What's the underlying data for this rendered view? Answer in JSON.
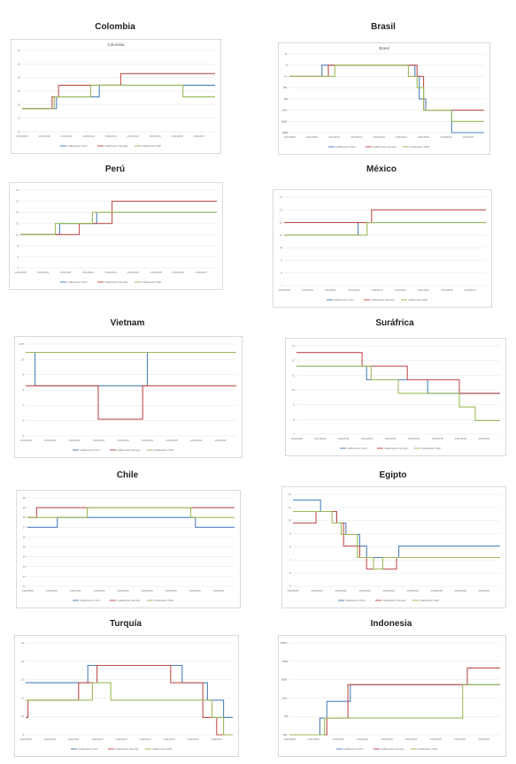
{
  "colors": {
    "fitch": "#4f81bd",
    "moodys": "#c0504d",
    "sp": "#9bbb59",
    "grid": "#e4e4e4"
  },
  "legend": [
    "Calificación Fitch",
    "Calificación Moodys",
    "Calificación S&P"
  ],
  "chart_data": [
    {
      "type": "line",
      "title": "Colombia",
      "subtitle": "Colombia",
      "step": true,
      "x_ticks": [
        "1/01/2009",
        "1/01/2010",
        "1/01/2011",
        "1/01/2012",
        "1/01/2013",
        "1/01/2014",
        "1/01/2015",
        "1/01/2016",
        "1/01/2017"
      ],
      "y_ticks": [
        "11",
        "12",
        "13",
        "14",
        "15",
        "16",
        "17"
      ],
      "xlim": [
        0,
        9
      ],
      "ylim": [
        10,
        17
      ],
      "series": [
        {
          "name": "Calificación Fitch",
          "color": "#4f81bd",
          "x": [
            0,
            1.6,
            1.6,
            2.6,
            3.6,
            3.6,
            4.6,
            8.2,
            8.2,
            9
          ],
          "y": [
            12,
            12,
            13,
            13,
            13,
            14,
            14,
            14,
            14,
            14
          ]
        },
        {
          "name": "Calificación Moodys",
          "color": "#c0504d",
          "x": [
            0,
            1.4,
            1.4,
            1.7,
            1.7,
            4.6,
            4.6,
            9
          ],
          "y": [
            12,
            12,
            13,
            13,
            14,
            14,
            15,
            15
          ]
        },
        {
          "name": "Calificación S&P",
          "color": "#9bbb59",
          "x": [
            0,
            1.5,
            1.5,
            3.2,
            3.2,
            7.5,
            7.5,
            9
          ],
          "y": [
            12,
            12,
            13,
            13,
            14,
            14,
            13,
            13
          ]
        }
      ]
    },
    {
      "type": "line",
      "title": "Brasil",
      "subtitle": "Brasil",
      "step": true,
      "x_ticks": [
        "1/01/2009",
        "1/01/2010",
        "1/01/2011",
        "1/01/2012",
        "1/01/2013",
        "1/01/2014",
        "1/01/2015",
        "1/01/2016",
        "1/01/2017"
      ],
      "y_ticks": [
        "BBB",
        "BBB-",
        "BB+",
        "BB",
        "BB-",
        "B+",
        "B",
        "B-"
      ],
      "xlim": [
        0,
        9
      ],
      "ylim": [
        0,
        7
      ],
      "series": [
        {
          "name": "Calificación Fitch",
          "color": "#4f81bd",
          "x": [
            0,
            1.5,
            1.5,
            5.8,
            5.8,
            6.0,
            6.0,
            6.3,
            6.3,
            7.5,
            7.5,
            9
          ],
          "y": [
            5,
            5,
            6,
            6,
            5,
            5,
            3,
            3,
            2,
            2,
            0,
            0
          ]
        },
        {
          "name": "Calificación Moodys",
          "color": "#c0504d",
          "x": [
            0,
            1.8,
            1.8,
            5.9,
            5.9,
            6.2,
            6.2,
            9
          ],
          "y": [
            5,
            5,
            6,
            6,
            5,
            5,
            2,
            2
          ]
        },
        {
          "name": "Calificación S&P",
          "color": "#9bbb59",
          "x": [
            0,
            2.1,
            2.1,
            5.5,
            5.5,
            5.9,
            5.9,
            6.2,
            6.2,
            7.5,
            7.5,
            9
          ],
          "y": [
            5,
            5,
            6,
            6,
            5,
            5,
            4,
            4,
            2,
            2,
            1,
            1
          ]
        }
      ]
    },
    {
      "type": "line",
      "title": "Perú",
      "step": true,
      "x_ticks": [
        "1/01/2009",
        "1/01/2010",
        "1/01/2011",
        "1/01/2012",
        "1/01/2013",
        "1/01/2014",
        "1/01/2015",
        "1/01/2016",
        "1/01/2017"
      ],
      "y_ticks": [
        "7",
        "8",
        "9",
        "10",
        "11",
        "12",
        "13",
        "14"
      ],
      "xlim": [
        0,
        9
      ],
      "ylim": [
        7,
        14
      ],
      "series": [
        {
          "name": "Calificación Fitch",
          "color": "#4f81bd",
          "x": [
            0,
            1.8,
            1.8,
            3.5,
            3.5,
            9
          ],
          "y": [
            10,
            10,
            11,
            11,
            12,
            12
          ]
        },
        {
          "name": "Calificación Moodys",
          "color": "#c0504d",
          "x": [
            0,
            2.7,
            2.7,
            4.2,
            4.2,
            9
          ],
          "y": [
            10,
            10,
            11,
            11,
            13,
            13
          ]
        },
        {
          "name": "Calificación S&P",
          "color": "#9bbb59",
          "x": [
            0,
            1.6,
            1.6,
            3.3,
            3.3,
            9
          ],
          "y": [
            10,
            10,
            11,
            11,
            12,
            12
          ]
        }
      ]
    },
    {
      "type": "line",
      "title": "México",
      "step": true,
      "x_ticks": [
        "1/01/2009",
        "1/01/2010",
        "1/01/2011",
        "1/01/2012",
        "1/01/2013",
        "1/01/2014",
        "1/01/2015",
        "1/01/2016",
        "1/01/2017"
      ],
      "y_ticks": [
        "7",
        "8",
        "9",
        "10",
        "11",
        "12",
        "13",
        "14"
      ],
      "xlim": [
        0,
        9
      ],
      "ylim": [
        7,
        14
      ],
      "series": [
        {
          "name": "Calificación Fitch",
          "color": "#4f81bd",
          "x": [
            0,
            3.3,
            3.3,
            9
          ],
          "y": [
            11,
            11,
            12,
            12
          ]
        },
        {
          "name": "Calificación Moodys",
          "color": "#c0504d",
          "x": [
            0,
            3.9,
            3.9,
            9
          ],
          "y": [
            12,
            12,
            13,
            13
          ]
        },
        {
          "name": "Calificación S&P",
          "color": "#9bbb59",
          "x": [
            0,
            3.7,
            3.7,
            9
          ],
          "y": [
            11,
            11,
            12,
            12
          ]
        }
      ]
    },
    {
      "type": "line",
      "title": "Vietnam",
      "step": true,
      "x_ticks": [
        "1/01/2009",
        "1/01/2010",
        "1/01/2011",
        "1/01/2012",
        "1/01/2013",
        "1/01/2014",
        "1/01/2015",
        "1/01/2016",
        "1/01/2017"
      ],
      "y_ticks": [
        "5",
        "6",
        "7",
        "8",
        "9",
        "10",
        "10.5"
      ],
      "xlim": [
        0,
        9
      ],
      "ylim": [
        5,
        10.5
      ],
      "series": [
        {
          "name": "Calificación Fitch",
          "color": "#4f81bd",
          "x": [
            0,
            0.4,
            0.4,
            5.2,
            5.2,
            9
          ],
          "y": [
            10,
            10,
            8,
            8,
            10,
            10
          ]
        },
        {
          "name": "Calificación Moodys",
          "color": "#c0504d",
          "x": [
            0,
            3.1,
            3.1,
            5.0,
            5.0,
            9
          ],
          "y": [
            8,
            8,
            6,
            6,
            8,
            8
          ]
        },
        {
          "name": "Calificación S&P",
          "color": "#9bbb59",
          "x": [
            0,
            9
          ],
          "y": [
            10,
            10
          ]
        }
      ]
    },
    {
      "type": "line",
      "title": "Suráfrica",
      "step": true,
      "x_ticks": [
        "1/01/2009",
        "1/01/2010",
        "1/01/2011",
        "1/01/2012",
        "1/01/2013",
        "1/01/2014",
        "1/01/2015",
        "1/01/2016",
        "1/01/2017"
      ],
      "y_ticks": [
        "7",
        "8",
        "9",
        "10",
        "11",
        "12",
        "13"
      ],
      "xlim": [
        0,
        9
      ],
      "ylim": [
        7,
        13.5
      ],
      "series": [
        {
          "name": "Calificación Fitch",
          "color": "#4f81bd",
          "x": [
            0,
            3.1,
            3.1,
            5.8,
            5.8,
            9
          ],
          "y": [
            12,
            12,
            11,
            11,
            10,
            10
          ]
        },
        {
          "name": "Calificación Moodys",
          "color": "#c0504d",
          "x": [
            0,
            2.9,
            2.9,
            4.9,
            4.9,
            7.2,
            7.2,
            9
          ],
          "y": [
            13,
            13,
            12,
            12,
            11,
            11,
            10,
            10
          ]
        },
        {
          "name": "Calificación S&P",
          "color": "#9bbb59",
          "x": [
            0,
            3.3,
            3.3,
            4.5,
            4.5,
            7.2,
            7.2,
            7.9,
            7.9,
            9
          ],
          "y": [
            12,
            12,
            11,
            11,
            10,
            10,
            9,
            9,
            8,
            8
          ]
        }
      ]
    },
    {
      "type": "line",
      "title": "Chile",
      "step": true,
      "x_ticks": [
        "1/01/2009",
        "1/01/2010",
        "1/01/2011",
        "1/01/2012",
        "1/01/2013",
        "1/01/2014",
        "1/01/2015",
        "1/01/2016",
        "1/01/2017"
      ],
      "y_ticks": [
        "11",
        "12",
        "13",
        "14",
        "15",
        "16",
        "17",
        "18",
        "19",
        "20"
      ],
      "xlim": [
        0,
        9
      ],
      "ylim": [
        11,
        20
      ],
      "series": [
        {
          "name": "Calificación Fitch",
          "color": "#4f81bd",
          "x": [
            0,
            1.3,
            1.3,
            7.3,
            7.3,
            9
          ],
          "y": [
            17,
            17,
            18,
            18,
            17,
            17
          ]
        },
        {
          "name": "Calificación Moodys",
          "color": "#c0504d",
          "x": [
            0,
            0.4,
            0.4,
            9
          ],
          "y": [
            18,
            18,
            19,
            19
          ]
        },
        {
          "name": "Calificación S&P",
          "color": "#9bbb59",
          "x": [
            0,
            2.6,
            2.6,
            7.1,
            7.1,
            9
          ],
          "y": [
            18,
            18,
            19,
            19,
            18,
            18
          ]
        }
      ]
    },
    {
      "type": "line",
      "title": "Egipto",
      "step": true,
      "x_ticks": [
        "1/01/2009",
        "1/01/2010",
        "1/01/2011",
        "1/01/2012",
        "1/01/2013",
        "1/01/2014",
        "1/01/2015",
        "1/01/2016",
        "1/01/2017"
      ],
      "y_ticks": [
        "5",
        "6",
        "7",
        "8",
        "9",
        "10",
        "11",
        "12"
      ],
      "xlim": [
        0,
        9
      ],
      "ylim": [
        4.5,
        12.5
      ],
      "series": [
        {
          "name": "Calificación Fitch",
          "color": "#4f81bd",
          "x": [
            0,
            1.2,
            1.2,
            1.9,
            1.9,
            2.3,
            2.3,
            2.9,
            2.9,
            3.2,
            3.2,
            4.6,
            4.6,
            9
          ],
          "y": [
            12,
            12,
            11,
            11,
            10,
            10,
            9,
            9,
            8,
            8,
            7,
            7,
            8,
            8
          ]
        },
        {
          "name": "Calificación Moodys",
          "color": "#c0504d",
          "x": [
            0,
            1.0,
            1.0,
            1.9,
            1.9,
            2.2,
            2.2,
            2.9,
            2.9,
            3.2,
            3.2,
            4.5,
            4.5,
            9
          ],
          "y": [
            10,
            10,
            11,
            11,
            10,
            10,
            8,
            8,
            7,
            7,
            6,
            6,
            7,
            7
          ]
        },
        {
          "name": "Calificación S&P",
          "color": "#9bbb59",
          "x": [
            0,
            1.7,
            1.7,
            2.1,
            2.1,
            2.8,
            2.8,
            3.5,
            3.5,
            3.9,
            3.9,
            9
          ],
          "y": [
            11,
            11,
            10,
            10,
            9,
            9,
            7,
            7,
            6,
            6,
            7,
            7
          ]
        }
      ]
    },
    {
      "type": "line",
      "title": "Turquía",
      "step": true,
      "x_ticks": [
        "1/01/2009",
        "1/01/2010",
        "1/01/2011",
        "1/01/2012",
        "1/01/2013",
        "1/01/2014",
        "1/01/2015",
        "1/01/2016",
        "1/01/2017"
      ],
      "y_ticks": [
        "9",
        "10",
        "11",
        "12",
        "13",
        "14"
      ],
      "xlim": [
        0,
        9
      ],
      "ylim": [
        9,
        14.3
      ],
      "series": [
        {
          "name": "Calificación Fitch",
          "color": "#4f81bd",
          "x": [
            0,
            2.7,
            2.7,
            6.8,
            6.8,
            7.9,
            7.9,
            8.6,
            8.6,
            9
          ],
          "y": [
            12,
            12,
            13,
            13,
            12,
            12,
            11,
            11,
            10,
            10
          ]
        },
        {
          "name": "Calificación Moodys",
          "color": "#c0504d",
          "x": [
            0,
            0.1,
            0.1,
            2.3,
            2.3,
            3.1,
            3.1,
            6.3,
            6.3,
            7.7,
            7.7,
            8.3,
            8.3,
            9
          ],
          "y": [
            10,
            10,
            11,
            11,
            12,
            12,
            13,
            13,
            12,
            12,
            10,
            10,
            9,
            9
          ]
        },
        {
          "name": "Calificación S&P",
          "color": "#9bbb59",
          "x": [
            0,
            0.2,
            0.2,
            2.9,
            2.9,
            3.7,
            3.7,
            7.6,
            7.6,
            8.1,
            8.1,
            8.6,
            8.6,
            9
          ],
          "y": [
            11,
            11,
            11,
            11,
            12,
            12,
            11,
            11,
            11,
            11,
            10,
            10,
            9,
            9
          ]
        }
      ]
    },
    {
      "type": "line",
      "title": "Indonesia",
      "step": true,
      "x_ticks": [
        "1/01/2009",
        "1/01/2010",
        "1/01/2011",
        "1/01/2012",
        "1/01/2013",
        "1/01/2014",
        "1/01/2015",
        "1/01/2016",
        "1/01/2017"
      ],
      "y_ticks": [
        "BB-",
        "BB",
        "BB+",
        "BBB-",
        "BBB",
        "BBB+"
      ],
      "xlim": [
        0,
        9
      ],
      "ylim": [
        0,
        5.5
      ],
      "series": [
        {
          "name": "Calificación Fitch",
          "color": "#4f81bd",
          "x": [
            0,
            1.3,
            1.3,
            1.6,
            1.6,
            2.6,
            2.6,
            9
          ],
          "y": [
            0,
            0,
            1,
            1,
            2,
            2,
            3,
            3
          ]
        },
        {
          "name": "Calificación Moodys",
          "color": "#c0504d",
          "x": [
            0,
            1.6,
            1.6,
            2.5,
            2.5,
            7.6,
            7.6,
            9
          ],
          "y": [
            0,
            0,
            1,
            1,
            3,
            3,
            4,
            4
          ]
        },
        {
          "name": "Calificación S&P",
          "color": "#9bbb59",
          "x": [
            0,
            1.5,
            1.5,
            7.4,
            7.4,
            9
          ],
          "y": [
            0,
            0,
            1,
            1,
            3,
            3
          ]
        }
      ]
    }
  ]
}
